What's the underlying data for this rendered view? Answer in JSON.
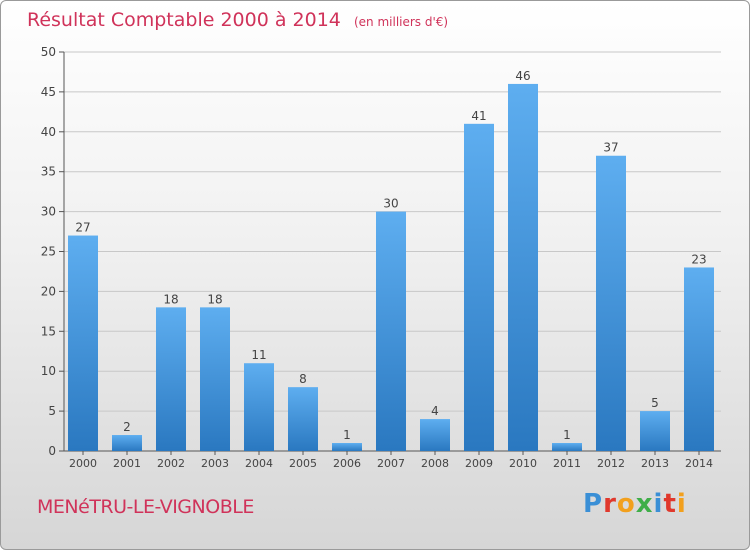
{
  "header": {
    "title": "Résultat Comptable 2000 à 2014",
    "subtitle": "(en milliers d'€)"
  },
  "footer": {
    "commune": "MENéTRU-LE-VIGNOBLE",
    "logo": "Proxiti",
    "logo_colors": [
      "#3a8fd6",
      "#e0382c",
      "#f2a01d",
      "#3fae49",
      "#3a8fd6",
      "#e0382c",
      "#f2a01d"
    ]
  },
  "colors": {
    "bar_top": "#5eaef0",
    "bar_bottom": "#2a78c0",
    "title": "#d0335a",
    "grid": "#c8c8c8"
  },
  "chart_data": {
    "type": "bar",
    "categories": [
      "2000",
      "2001",
      "2002",
      "2003",
      "2004",
      "2005",
      "2006",
      "2007",
      "2008",
      "2009",
      "2010",
      "2011",
      "2012",
      "2013",
      "2014"
    ],
    "values": [
      27,
      2,
      18,
      18,
      11,
      8,
      1,
      30,
      4,
      41,
      46,
      1,
      37,
      5,
      23
    ],
    "data_labels": [
      "27",
      "2",
      "18",
      "18",
      "11",
      "8",
      "1",
      "30",
      "4",
      "41",
      "46",
      "1",
      "37",
      "5",
      "23"
    ],
    "yticks": [
      "0",
      "5",
      "10",
      "15",
      "20",
      "25",
      "30",
      "35",
      "40",
      "45",
      "50"
    ],
    "ylim": [
      0,
      50
    ],
    "grid": true
  }
}
